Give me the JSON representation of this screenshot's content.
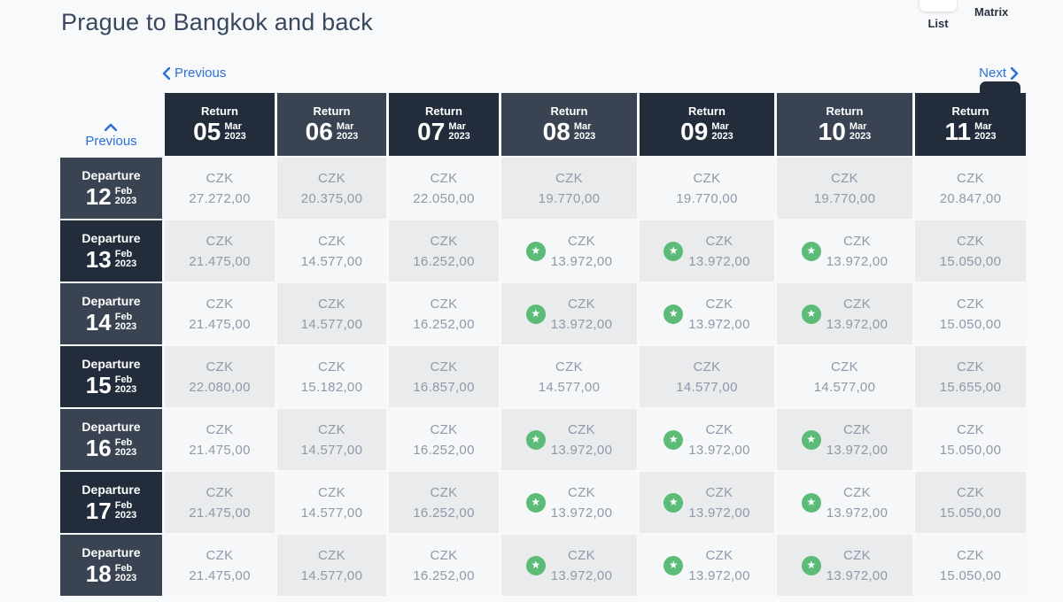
{
  "header": {
    "title": "Prague to Bangkok and back",
    "view_toggle": {
      "list_label": "List",
      "matrix_label": "Matrix",
      "active": "Matrix"
    }
  },
  "nav": {
    "previous_label": "Previous",
    "next_label": "Next",
    "rows_previous_label": "Previous"
  },
  "matrix": {
    "currency": "CZK",
    "col_header_prefix": "Return",
    "row_header_prefix": "Departure",
    "columns": [
      {
        "day": "05",
        "month": "Mar",
        "year": "2023"
      },
      {
        "day": "06",
        "month": "Mar",
        "year": "2023"
      },
      {
        "day": "07",
        "month": "Mar",
        "year": "2023"
      },
      {
        "day": "08",
        "month": "Mar",
        "year": "2023"
      },
      {
        "day": "09",
        "month": "Mar",
        "year": "2023"
      },
      {
        "day": "10",
        "month": "Mar",
        "year": "2023"
      },
      {
        "day": "11",
        "month": "Mar",
        "year": "2023"
      }
    ],
    "rows": [
      {
        "day": "12",
        "month": "Feb",
        "year": "2023"
      },
      {
        "day": "13",
        "month": "Feb",
        "year": "2023"
      },
      {
        "day": "14",
        "month": "Feb",
        "year": "2023"
      },
      {
        "day": "15",
        "month": "Feb",
        "year": "2023"
      },
      {
        "day": "16",
        "month": "Feb",
        "year": "2023"
      },
      {
        "day": "17",
        "month": "Feb",
        "year": "2023"
      },
      {
        "day": "18",
        "month": "Feb",
        "year": "2023"
      }
    ],
    "prices": [
      [
        "27.272,00",
        "20.375,00",
        "22.050,00",
        "19.770,00",
        "19.770,00",
        "19.770,00",
        "20.847,00"
      ],
      [
        "21.475,00",
        "14.577,00",
        "16.252,00",
        "13.972,00",
        "13.972,00",
        "13.972,00",
        "15.050,00"
      ],
      [
        "21.475,00",
        "14.577,00",
        "16.252,00",
        "13.972,00",
        "13.972,00",
        "13.972,00",
        "15.050,00"
      ],
      [
        "22.080,00",
        "15.182,00",
        "16.857,00",
        "14.577,00",
        "14.577,00",
        "14.577,00",
        "15.655,00"
      ],
      [
        "21.475,00",
        "14.577,00",
        "16.252,00",
        "13.972,00",
        "13.972,00",
        "13.972,00",
        "15.050,00"
      ],
      [
        "21.475,00",
        "14.577,00",
        "16.252,00",
        "13.972,00",
        "13.972,00",
        "13.972,00",
        "15.050,00"
      ],
      [
        "21.475,00",
        "14.577,00",
        "16.252,00",
        "13.972,00",
        "13.972,00",
        "13.972,00",
        "15.050,00"
      ]
    ],
    "starred": [
      [
        false,
        false,
        false,
        false,
        false,
        false,
        false
      ],
      [
        false,
        false,
        false,
        true,
        true,
        true,
        false
      ],
      [
        false,
        false,
        false,
        true,
        true,
        true,
        false
      ],
      [
        false,
        false,
        false,
        false,
        false,
        false,
        false
      ],
      [
        false,
        false,
        false,
        true,
        true,
        true,
        false
      ],
      [
        false,
        false,
        false,
        true,
        true,
        true,
        false
      ],
      [
        false,
        false,
        false,
        true,
        true,
        true,
        false
      ]
    ]
  },
  "colors": {
    "page_bg": "#f8f9fa",
    "header_cell_dark": "#222c3b",
    "header_cell_light": "#3a4351",
    "cell_light": "#f6f7f8",
    "cell_shaded": "#e9ebec",
    "price_text": "#8f99aa",
    "link": "#2e6fd8",
    "star_green": "#5cbc77",
    "title_text": "#39485e"
  }
}
